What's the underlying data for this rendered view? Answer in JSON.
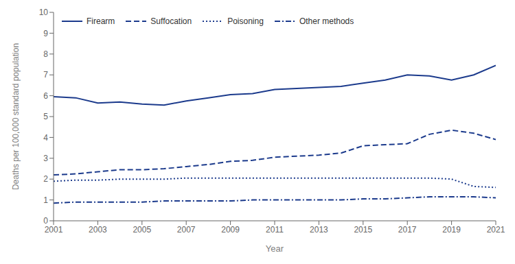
{
  "chart_data": {
    "type": "line",
    "x": [
      2001,
      2002,
      2003,
      2004,
      2005,
      2006,
      2007,
      2008,
      2009,
      2010,
      2011,
      2012,
      2013,
      2014,
      2015,
      2016,
      2017,
      2018,
      2019,
      2020,
      2021
    ],
    "series": [
      {
        "name": "Firearm",
        "color": "#1b3a8c",
        "line_style": "solid",
        "values": [
          5.95,
          5.9,
          5.65,
          5.7,
          5.6,
          5.55,
          5.75,
          5.9,
          6.05,
          6.1,
          6.3,
          6.35,
          6.4,
          6.45,
          6.6,
          6.75,
          7.0,
          6.95,
          6.75,
          7.0,
          7.45
        ]
      },
      {
        "name": "Suffocation",
        "color": "#1b3a8c",
        "line_style": "dashed",
        "values": [
          2.2,
          2.25,
          2.35,
          2.45,
          2.45,
          2.5,
          2.6,
          2.7,
          2.85,
          2.9,
          3.05,
          3.1,
          3.15,
          3.25,
          3.6,
          3.65,
          3.7,
          4.15,
          4.35,
          4.2,
          3.9
        ]
      },
      {
        "name": "Poisoning",
        "color": "#1b3a8c",
        "line_style": "dotted",
        "values": [
          1.9,
          1.95,
          1.95,
          2.0,
          2.0,
          2.0,
          2.05,
          2.05,
          2.05,
          2.05,
          2.05,
          2.05,
          2.05,
          2.05,
          2.05,
          2.05,
          2.05,
          2.05,
          2.0,
          1.65,
          1.6
        ]
      },
      {
        "name": "Other methods",
        "color": "#1b3a8c",
        "line_style": "dashdot",
        "values": [
          0.85,
          0.9,
          0.9,
          0.9,
          0.9,
          0.95,
          0.95,
          0.95,
          0.95,
          1.0,
          1.0,
          1.0,
          1.0,
          1.0,
          1.05,
          1.05,
          1.1,
          1.15,
          1.15,
          1.15,
          1.1
        ]
      }
    ],
    "xlim": [
      2001,
      2021
    ],
    "xticks": [
      2001,
      2003,
      2005,
      2007,
      2009,
      2011,
      2013,
      2015,
      2017,
      2019,
      2021
    ],
    "ylim": [
      0,
      10
    ],
    "yticks": [
      0,
      1,
      2,
      3,
      4,
      5,
      6,
      7,
      8,
      9,
      10
    ],
    "xlabel": "Year",
    "ylabel": "Deaths per 100,000 standard population",
    "legend": "upper left",
    "grid": false
  }
}
